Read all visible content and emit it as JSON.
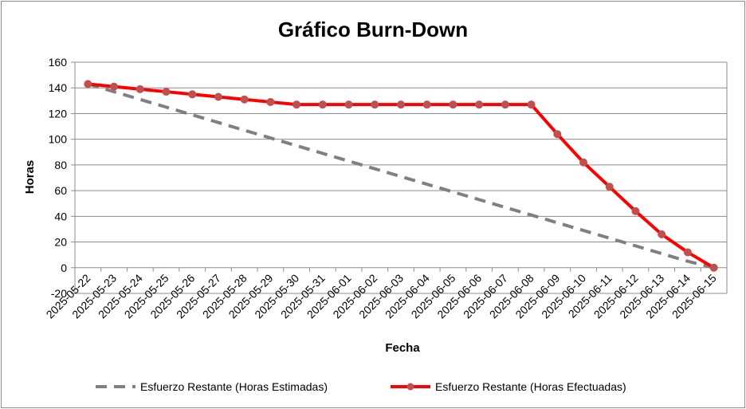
{
  "chart_data": {
    "type": "line",
    "title": "Gráfico Burn-Down",
    "xlabel": "Fecha",
    "ylabel": "Horas",
    "ylim": [
      -20,
      160
    ],
    "yticks": [
      -20,
      0,
      20,
      40,
      60,
      80,
      100,
      120,
      140,
      160
    ],
    "grid": true,
    "legend_position": "bottom",
    "categories": [
      "2025-05-22",
      "2025-05-23",
      "2025-05-24",
      "2025-05-25",
      "2025-05-26",
      "2025-05-27",
      "2025-05-28",
      "2025-05-29",
      "2025-05-30",
      "2025-05-31",
      "2025-06-01",
      "2025-06-02",
      "2025-06-03",
      "2025-06-04",
      "2025-06-05",
      "2025-06-06",
      "2025-06-07",
      "2025-06-08",
      "2025-06-09",
      "2025-06-10",
      "2025-06-11",
      "2025-06-12",
      "2025-06-13",
      "2025-06-14",
      "2025-06-15"
    ],
    "series": [
      {
        "name": "Esfuerzo Restante (Horas Estimadas)",
        "color": "#808080",
        "style": "dashed",
        "values": [
          143,
          137,
          131,
          125,
          119,
          113,
          107,
          101,
          95,
          89,
          83,
          77,
          71,
          65,
          59,
          53,
          47,
          41,
          35,
          29,
          23,
          17,
          11,
          5,
          0
        ]
      },
      {
        "name": "Esfuerzo Restante (Horas Efectuadas)",
        "color": "#ff0000",
        "marker_color": "#c0504d",
        "style": "solid",
        "values": [
          143,
          141,
          139,
          137,
          135,
          133,
          131,
          129,
          127,
          127,
          127,
          127,
          127,
          127,
          127,
          127,
          127,
          127,
          104,
          82,
          63,
          44,
          26,
          12,
          0
        ]
      }
    ]
  }
}
